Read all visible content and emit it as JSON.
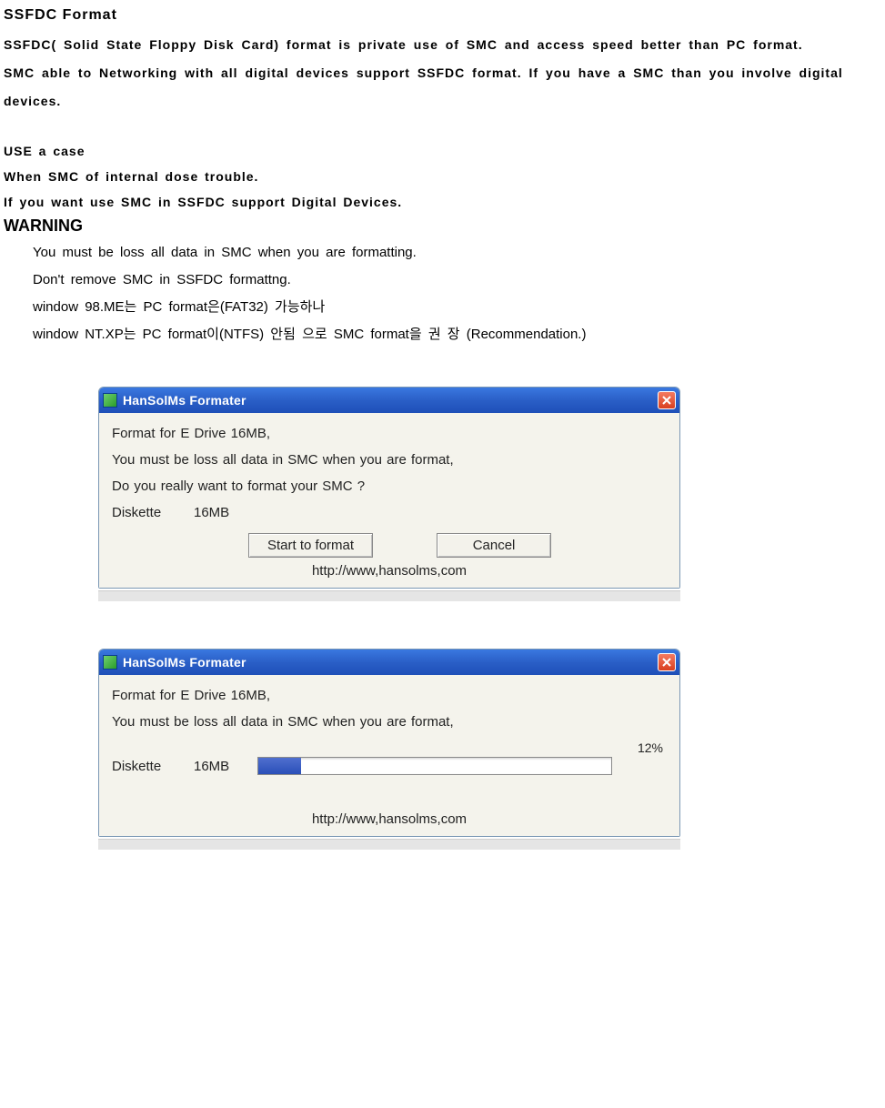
{
  "doc": {
    "title": "SSFDC Format",
    "para1": "SSFDC( Solid State Floppy Disk Card) format is  private use of SMC and access speed better than PC format.",
    "para2": "SMC able to Networking with  all digital devices support SSFDC format. If you have a SMC than you involve digital devices.",
    "use_case_heading": "USE a case",
    "use_case_line1": "When SMC of  internal dose trouble.",
    "use_case_line2": "If you want use SMC in SSFDC support Digital Devices.",
    "warning_heading": "WARNING",
    "warn_line1": "You must be loss all data in SMC when you are formatting.",
    "warn_line2": "Don't remove SMC in SSFDC formattng.",
    "warn_line3": "window 98.ME는 PC format은(FAT32) 가능하나",
    "warn_line4": "window NT.XP는 PC format이(NTFS) 안됨 으로 SMC format을 권 장 (Recommendation.)"
  },
  "dialog1": {
    "title": "HanSolMs Formater",
    "line1": "Format for E Drive 16MB,",
    "line2": "You must be loss all data in SMC when you are format,",
    "line3": "Do you really want to format your SMC ?",
    "disk_label": "Diskette",
    "disk_value": "16MB",
    "btn_start": "Start to format",
    "btn_cancel": "Cancel",
    "url": "http://www,hansolms,com"
  },
  "dialog2": {
    "title": "HanSolMs Formater",
    "line1": "Format for E Drive 16MB,",
    "line2": "You must be loss all data in SMC when you are format,",
    "disk_label": "Diskette",
    "disk_value": "16MB",
    "progress_pct": "12%",
    "progress_value": 12,
    "url": "http://www,hansolms,com"
  },
  "style": {
    "titlebar_gradient_top": "#3a78e0",
    "titlebar_gradient_bottom": "#1e4fb8",
    "close_bg_top": "#f47b62",
    "close_bg_bottom": "#d93f1f",
    "dialog_bg": "#f4f3ec",
    "progress_fill": "#2a4fb8"
  }
}
